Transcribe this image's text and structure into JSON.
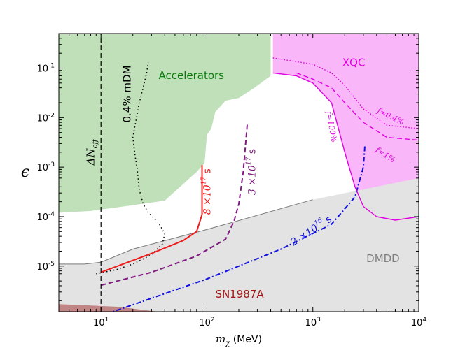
{
  "chart_data": {
    "type": "line",
    "x_scale": "log",
    "y_scale": "log",
    "xlim": [
      4,
      10000
    ],
    "ylim": [
      1.2e-06,
      0.5
    ],
    "xlabel": {
      "symbol": "m",
      "sub": "χ",
      "unit": " (MeV)"
    },
    "ylabel": "ϵ",
    "x_ticks": [
      {
        "value": 10,
        "base": "10",
        "exp": "1"
      },
      {
        "value": 100,
        "base": "10",
        "exp": "2"
      },
      {
        "value": 1000,
        "base": "10",
        "exp": "3"
      },
      {
        "value": 10000,
        "base": "10",
        "exp": "4"
      }
    ],
    "y_ticks": [
      {
        "value": 1e-05,
        "base": "10",
        "exp": "-5"
      },
      {
        "value": 0.0001,
        "base": "10",
        "exp": "-4"
      },
      {
        "value": 0.001,
        "base": "10",
        "exp": "-3"
      },
      {
        "value": 0.01,
        "base": "10",
        "exp": "-2"
      },
      {
        "value": 0.1,
        "base": "10",
        "exp": "-1"
      }
    ],
    "regions": [
      {
        "name": "Accelerators",
        "fill": "#bfe0b8",
        "label_color": "#0a7a0a",
        "label_at": [
          35,
          0.06
        ],
        "points": [
          [
            4,
            0.5
          ],
          [
            400,
            0.5
          ],
          [
            400,
            0.07
          ],
          [
            280,
            0.04
          ],
          [
            200,
            0.025
          ],
          [
            150,
            0.022
          ],
          [
            120,
            0.013
          ],
          [
            110,
            0.006
          ],
          [
            100,
            0.0045
          ],
          [
            95,
            0.0012
          ],
          [
            80,
            0.0008
          ],
          [
            40,
            0.00021
          ],
          [
            20,
            0.00017
          ],
          [
            8,
            0.00013
          ],
          [
            4,
            0.00012
          ]
        ]
      },
      {
        "name": "XQC",
        "fill": "#f9b6f9",
        "label_color": "#e000e0",
        "label_at": [
          1900,
          0.11
        ],
        "points": [
          [
            420,
            0.5
          ],
          [
            10000,
            0.5
          ],
          [
            10000,
            0.0001
          ],
          [
            6000,
            8.5e-05
          ],
          [
            4000,
            0.0001
          ],
          [
            3000,
            0.00016
          ],
          [
            2500,
            0.0004
          ],
          [
            2000,
            0.002
          ],
          [
            1500,
            0.02
          ],
          [
            1000,
            0.05
          ],
          [
            700,
            0.07
          ],
          [
            420,
            0.08
          ]
        ]
      },
      {
        "name": "DMDD",
        "fill": "#e3e3e3",
        "label_color": "#808080",
        "label_at": [
          3200,
          1.2e-05
        ],
        "points": [
          [
            4,
            1.1e-05
          ],
          [
            7,
            1.1e-05
          ],
          [
            10,
            1.2e-05
          ],
          [
            20,
            2.2e-05
          ],
          [
            100,
            5.5e-05
          ],
          [
            1000,
            0.00022
          ],
          [
            10000,
            0.0006
          ],
          [
            10000,
            1.2e-06
          ],
          [
            4,
            1.2e-06
          ]
        ]
      },
      {
        "name": "SN1987A",
        "fill": "#c08585",
        "label_color": "#a31515",
        "label_at": [
          120,
          2.3e-06
        ],
        "points": [
          [
            4,
            1.2e-06
          ],
          [
            4,
            1.7e-06
          ],
          [
            8,
            1.6e-06
          ],
          [
            15,
            1.5e-06
          ],
          [
            25,
            1.3e-06
          ],
          [
            35,
            1.2e-06
          ]
        ]
      }
    ],
    "series": [
      {
        "name": "0.4% mDM",
        "color": "#000000",
        "dash": "1.5 3.5",
        "width": 1.5,
        "points": [
          [
            9,
            7e-06
          ],
          [
            14,
            8.5e-06
          ],
          [
            20,
            1.1e-05
          ],
          [
            30,
            1.7e-05
          ],
          [
            38,
            2.8e-05
          ],
          [
            40,
            4.5e-05
          ],
          [
            35,
            7.5e-05
          ],
          [
            28,
            0.00012
          ],
          [
            25,
            0.00018
          ],
          [
            23,
            0.00035
          ],
          [
            22,
            0.0009
          ],
          [
            21,
            0.0017
          ],
          [
            20,
            0.004
          ],
          [
            21,
            0.007
          ],
          [
            22,
            0.012
          ],
          [
            23,
            0.02
          ],
          [
            25,
            0.04
          ],
          [
            27,
            0.08
          ],
          [
            28,
            0.13
          ]
        ],
        "label": "0.4% mDM",
        "label_at": [
          19,
          0.03
        ],
        "label_rotate": -90
      },
      {
        "name": "8 ×10^17 s",
        "color": "#ee1b1b",
        "dash": "",
        "width": 2,
        "points": [
          [
            10,
            7.5e-06
          ],
          [
            30,
            1.8e-05
          ],
          [
            60,
            3.3e-05
          ],
          [
            80,
            5e-05
          ],
          [
            90,
            0.00011
          ],
          [
            90,
            0.0011
          ]
        ],
        "label_base": "8 ×10",
        "label_exp": "17",
        "label_unit": " s",
        "label_at": [
          108,
          0.00032
        ],
        "label_rotate": -90
      },
      {
        "name": "3 ×10^17 s",
        "color": "#7f1a7f",
        "dash": "7 4",
        "width": 2,
        "points": [
          [
            10,
            4.1e-06
          ],
          [
            30,
            7.5e-06
          ],
          [
            80,
            1.6e-05
          ],
          [
            150,
            3.5e-05
          ],
          [
            180,
            8e-05
          ],
          [
            200,
            0.00018
          ],
          [
            220,
            0.0008
          ],
          [
            240,
            0.0072
          ]
        ],
        "label_base": "3 ×10",
        "label_exp": "17",
        "label_unit": " s",
        "label_at": [
          285,
          0.0008
        ],
        "label_rotate": -90
      },
      {
        "name": "2 ×10^16 s",
        "color": "#1010e0",
        "dash": "2 3 7 3",
        "width": 2,
        "points": [
          [
            13,
            1.2e-06
          ],
          [
            100,
            5.5e-06
          ],
          [
            500,
            2.2e-05
          ],
          [
            1500,
            7e-05
          ],
          [
            2500,
            0.00025
          ],
          [
            3000,
            0.001
          ],
          [
            3100,
            0.0028
          ]
        ],
        "label_base": "2 ×10",
        "label_exp": "16",
        "label_unit": " s",
        "label_at": [
          1000,
          4.6e-05
        ],
        "label_rotate": -33
      },
      {
        "name": "f=100%",
        "color": "#e000e0",
        "dash": "",
        "width": 1.4,
        "points": [
          [
            420,
            0.08
          ],
          [
            700,
            0.07
          ],
          [
            1000,
            0.05
          ],
          [
            1500,
            0.02
          ],
          [
            2000,
            0.002
          ],
          [
            2500,
            0.0004
          ],
          [
            3000,
            0.00016
          ],
          [
            4000,
            0.0001
          ],
          [
            6000,
            8.5e-05
          ],
          [
            10000,
            0.0001
          ]
        ],
        "label": "f=100%",
        "label_at": [
          1420,
          0.0064
        ],
        "label_rotate": 80
      },
      {
        "name": "f=1%",
        "color": "#e000e0",
        "dash": "7 4",
        "width": 1.4,
        "points": [
          [
            700,
            0.08
          ],
          [
            1000,
            0.06
          ],
          [
            1500,
            0.04
          ],
          [
            2000,
            0.02
          ],
          [
            3000,
            0.008
          ],
          [
            5000,
            0.004
          ],
          [
            10000,
            0.0035
          ]
        ],
        "label": "f=1%",
        "label_at": [
          4700,
          0.0016
        ],
        "label_rotate": 33
      },
      {
        "name": "f=0.4%",
        "color": "#e000e0",
        "dash": "1.5 2.5",
        "width": 1.4,
        "points": [
          [
            420,
            0.16
          ],
          [
            1000,
            0.12
          ],
          [
            1500,
            0.08
          ],
          [
            2000,
            0.045
          ],
          [
            3000,
            0.015
          ],
          [
            5000,
            0.007
          ],
          [
            10000,
            0.006
          ]
        ],
        "label": "f=0.4%",
        "label_at": [
          5300,
          0.0095
        ],
        "label_rotate": 26
      },
      {
        "name": "ΔNeff",
        "color": "#000000",
        "dash": "7 4",
        "width": 1.2,
        "points": [
          [
            10,
            1.2e-06
          ],
          [
            10,
            0.5
          ]
        ],
        "label_delta": "ΔN",
        "label_sub": "eff",
        "label_at": [
          8.6,
          0.002
        ],
        "label_rotate": -90
      }
    ]
  }
}
